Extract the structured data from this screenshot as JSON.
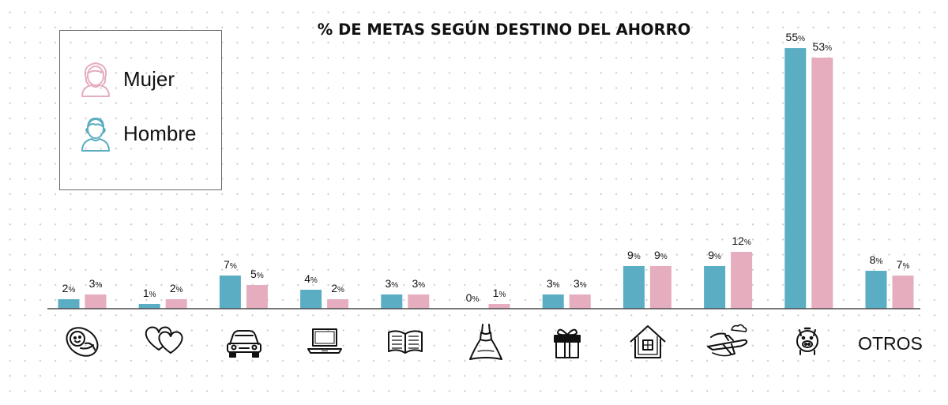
{
  "chart_data": {
    "type": "bar",
    "title": "% DE METAS SEGÚN DESTINO DEL AHORRO",
    "categories": [
      "baby-icon",
      "hearts-icon",
      "car-icon",
      "laptop-icon",
      "book-icon",
      "dress-icon",
      "gift-icon",
      "house-icon",
      "travel-icon",
      "piggy-bank-icon",
      "OTROS"
    ],
    "series": [
      {
        "name": "Hombre",
        "color": "#5aadc2",
        "values": [
          2,
          1,
          7,
          4,
          3,
          0,
          3,
          9,
          9,
          55,
          8
        ]
      },
      {
        "name": "Mujer",
        "color": "#e5adbd",
        "values": [
          3,
          2,
          5,
          2,
          3,
          1,
          3,
          9,
          12,
          53,
          7
        ]
      }
    ],
    "value_suffix": "%",
    "ylim": [
      0,
      60
    ],
    "grid": false,
    "legend": {
      "placement": "top-left",
      "order": [
        "Mujer",
        "Hombre"
      ]
    }
  },
  "legend": {
    "mujer_label": "Mujer",
    "hombre_label": "Hombre"
  }
}
